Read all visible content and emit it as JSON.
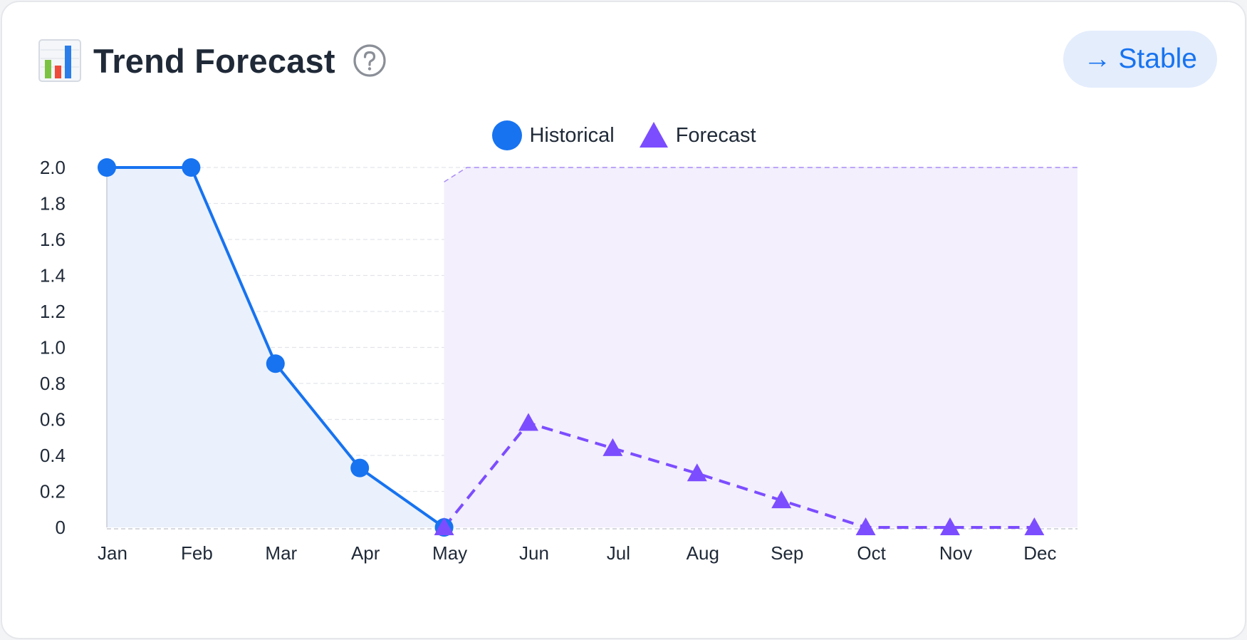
{
  "header": {
    "title": "Trend Forecast",
    "icon": "bar-chart-icon",
    "help_icon": "question-circle-icon"
  },
  "badge": {
    "arrow": "→",
    "label": "Stable",
    "color": "#1773f0"
  },
  "colors": {
    "historical": "#1773f0",
    "forecast": "#7c4dff",
    "historical_fill": "#eaf1fc",
    "forecast_fill": "#f3effd"
  },
  "chart_data": {
    "type": "line",
    "categories": [
      "Jan",
      "Feb",
      "Mar",
      "Apr",
      "May",
      "Jun",
      "Jul",
      "Aug",
      "Sep",
      "Oct",
      "Nov",
      "Dec"
    ],
    "series": [
      {
        "name": "Historical",
        "marker": "circle",
        "style": "solid",
        "x": [
          "Jan",
          "Feb",
          "Mar",
          "Apr",
          "May"
        ],
        "values": [
          2.0,
          2.0,
          0.91,
          0.33,
          0.0
        ]
      },
      {
        "name": "Forecast",
        "marker": "triangle",
        "style": "dashed",
        "x": [
          "May",
          "Jun",
          "Jul",
          "Aug",
          "Sep",
          "Oct",
          "Nov",
          "Dec"
        ],
        "values": [
          0.0,
          0.58,
          0.44,
          0.3,
          0.15,
          0.0,
          0.0,
          0.0
        ]
      }
    ],
    "confidence_band": {
      "x": [
        "May",
        "Jun",
        "Jul",
        "Aug",
        "Sep",
        "Oct",
        "Nov",
        "Dec"
      ],
      "upper": [
        1.92,
        2.0,
        2.0,
        2.0,
        2.0,
        2.0,
        2.0,
        2.0
      ],
      "lower": [
        0,
        0,
        0,
        0,
        0,
        0,
        0,
        0
      ]
    },
    "y_ticks": [
      "0",
      "0.2",
      "0.4",
      "0.6",
      "0.8",
      "1.0",
      "1.2",
      "1.4",
      "1.6",
      "1.8",
      "2.0"
    ],
    "ylim": [
      0,
      2.0
    ],
    "grid": true,
    "legend_position": "top-center",
    "title": "Trend Forecast",
    "xlabel": "",
    "ylabel": ""
  }
}
